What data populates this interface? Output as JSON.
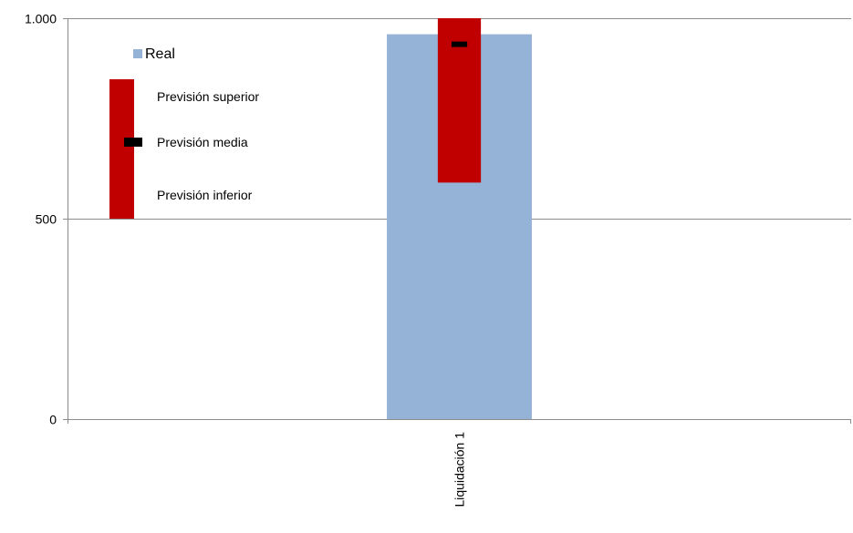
{
  "chart_data": {
    "type": "bar",
    "categories": [
      "Liquidación 1"
    ],
    "series": [
      {
        "name": "Real",
        "values": [
          960
        ],
        "color": "#95B3D7"
      }
    ],
    "forecast": {
      "upper": [
        1000
      ],
      "mean": [
        935
      ],
      "lower": [
        590
      ],
      "range_color": "#C00000",
      "mean_color": "#000000"
    },
    "ylim": [
      0,
      1000
    ],
    "yticks": [
      {
        "value": 0,
        "label": "0"
      },
      {
        "value": 500,
        "label": "500"
      },
      {
        "value": 1000,
        "label": "1.000"
      }
    ],
    "grid": true,
    "legend": {
      "position": "top-left",
      "real_label": "Real",
      "upper_label": "Previsión superior",
      "mean_label": "Previsión media",
      "lower_label": "Previsión inferior"
    },
    "colors": {
      "grid": "#8C8C8C",
      "axis": "#8C8C8C"
    }
  }
}
